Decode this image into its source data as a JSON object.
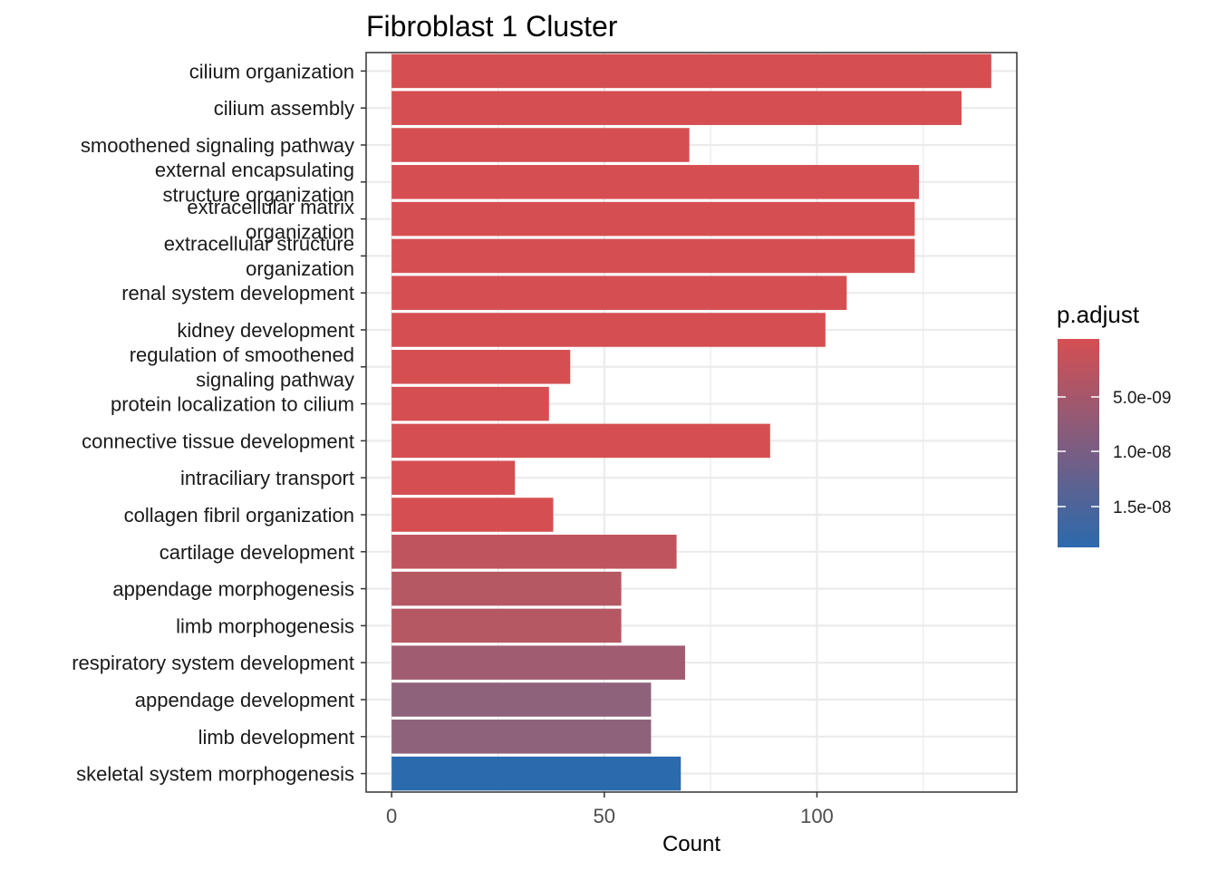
{
  "chart_data": {
    "type": "bar",
    "orientation": "horizontal",
    "title": "Fibroblast 1 Cluster",
    "xlabel": "Count",
    "ylabel": "",
    "xlim": [
      -6,
      147
    ],
    "xticks": [
      0,
      50,
      100
    ],
    "x_minor_ticks": [
      25,
      75,
      125
    ],
    "grid": true,
    "categories": [
      [
        "cilium organization"
      ],
      [
        "cilium assembly"
      ],
      [
        "smoothened signaling pathway"
      ],
      [
        "external encapsulating",
        "structure organization"
      ],
      [
        "extracellular matrix",
        "organization"
      ],
      [
        "extracellular structure",
        "organization"
      ],
      [
        "renal system development"
      ],
      [
        "kidney development"
      ],
      [
        "regulation of smoothened",
        "signaling pathway"
      ],
      [
        "protein localization to cilium"
      ],
      [
        "connective tissue development"
      ],
      [
        "intraciliary transport"
      ],
      [
        "collagen fibril organization"
      ],
      [
        "cartilage development"
      ],
      [
        "appendage morphogenesis"
      ],
      [
        "limb morphogenesis"
      ],
      [
        "respiratory system development"
      ],
      [
        "appendage development"
      ],
      [
        "limb development"
      ],
      [
        "skeletal system morphogenesis"
      ]
    ],
    "values": [
      141,
      134,
      70,
      124,
      123,
      123,
      107,
      102,
      42,
      37,
      89,
      29,
      38,
      67,
      54,
      54,
      69,
      61,
      61,
      68
    ],
    "colors": [
      "#d54f52",
      "#d54f52",
      "#d54f52",
      "#d54f52",
      "#d54f52",
      "#d54f52",
      "#d54f52",
      "#d54f52",
      "#d54f52",
      "#d54f52",
      "#d54f52",
      "#d54f52",
      "#d54f52",
      "#c0545e",
      "#b55863",
      "#b55863",
      "#a05d72",
      "#8e627b",
      "#8e627b",
      "#2b6aad"
    ],
    "legend": {
      "title": "p.adjust",
      "placement": "right",
      "color_low": "#d54f52",
      "color_high": "#2b6aad",
      "ticks": [
        "5.0e-09",
        "1.0e-08",
        "1.5e-08"
      ]
    }
  }
}
